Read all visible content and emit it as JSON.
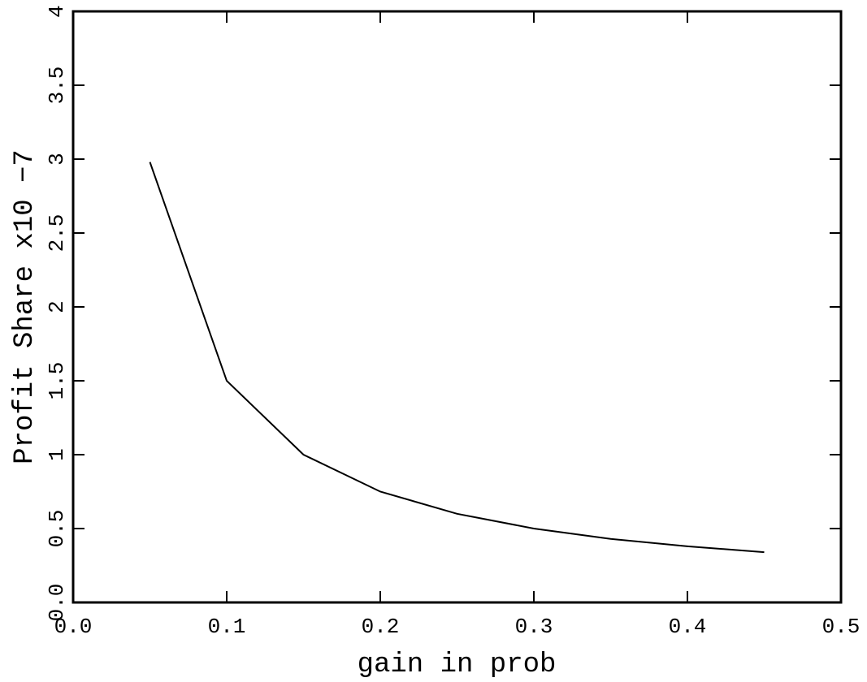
{
  "chart_data": {
    "type": "line",
    "xlabel": "gain in prob",
    "ylabel": "Profit Share x10 −7",
    "x": [
      0.05,
      0.1,
      0.15,
      0.2,
      0.25,
      0.3,
      0.35,
      0.4,
      0.45
    ],
    "series": [
      {
        "color": "#000000",
        "values": [
          2.98,
          1.5,
          1.0,
          0.75,
          0.6,
          0.5,
          0.43,
          0.38,
          0.34
        ]
      }
    ],
    "xlim": [
      0,
      0.5
    ],
    "xticks": [
      {
        "value": 0,
        "label": "0.0"
      },
      0.1,
      0.2,
      0.3,
      0.4,
      0.5
    ],
    "ylim": [
      0,
      4
    ],
    "yticks": [
      {
        "value": 0,
        "label": "0.0"
      },
      0.5,
      1,
      1.5,
      2,
      2.5,
      3,
      3.5,
      4
    ]
  }
}
